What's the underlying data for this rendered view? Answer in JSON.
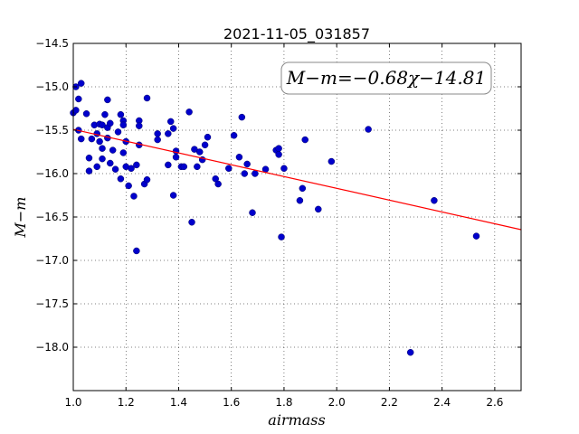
{
  "chart_data": {
    "type": "scatter",
    "title": "2021-11-05_031857",
    "xlabel": "airmass",
    "ylabel": "M−m",
    "xlim": [
      1.0,
      2.7
    ],
    "ylim": [
      -14.5,
      -18.5
    ],
    "y_inverted": true,
    "grid": true,
    "xticks": [
      1.0,
      1.2,
      1.4,
      1.6,
      1.8,
      2.0,
      2.2,
      2.4,
      2.6
    ],
    "xtick_labels": [
      "1.0",
      "1.2",
      "1.4",
      "1.6",
      "1.8",
      "2.0",
      "2.2",
      "2.4",
      "2.6"
    ],
    "yticks": [
      -14.5,
      -15.0,
      -15.5,
      -16.0,
      -16.5,
      -17.0,
      -17.5,
      -18.0
    ],
    "ytick_labels": [
      "−14.5",
      "−15.0",
      "−15.5",
      "−16.0",
      "−16.5",
      "−17.0",
      "−17.5",
      "−18.0"
    ],
    "annotation": "M−m=−0.68χ−14.81",
    "annotation_position": "top-right",
    "fit": {
      "slope": -0.68,
      "intercept": -14.81,
      "color": "#ff0000"
    },
    "point_color": "#0000cc",
    "points": [
      [
        1.0,
        -15.3
      ],
      [
        1.01,
        -15.27
      ],
      [
        1.01,
        -15.0
      ],
      [
        1.02,
        -15.5
      ],
      [
        1.02,
        -15.14
      ],
      [
        1.03,
        -14.96
      ],
      [
        1.03,
        -15.6
      ],
      [
        1.05,
        -15.31
      ],
      [
        1.06,
        -15.82
      ],
      [
        1.06,
        -15.97
      ],
      [
        1.07,
        -15.6
      ],
      [
        1.08,
        -15.44
      ],
      [
        1.09,
        -15.92
      ],
      [
        1.09,
        -15.54
      ],
      [
        1.1,
        -15.43
      ],
      [
        1.1,
        -15.63
      ],
      [
        1.11,
        -15.44
      ],
      [
        1.11,
        -15.71
      ],
      [
        1.11,
        -15.83
      ],
      [
        1.12,
        -15.32
      ],
      [
        1.13,
        -15.15
      ],
      [
        1.13,
        -15.59
      ],
      [
        1.13,
        -15.47
      ],
      [
        1.14,
        -15.42
      ],
      [
        1.14,
        -15.88
      ],
      [
        1.15,
        -15.73
      ],
      [
        1.16,
        -15.95
      ],
      [
        1.17,
        -15.52
      ],
      [
        1.18,
        -16.06
      ],
      [
        1.18,
        -15.32
      ],
      [
        1.19,
        -15.39
      ],
      [
        1.19,
        -15.44
      ],
      [
        1.19,
        -15.76
      ],
      [
        1.2,
        -15.92
      ],
      [
        1.2,
        -15.63
      ],
      [
        1.21,
        -16.14
      ],
      [
        1.22,
        -15.94
      ],
      [
        1.23,
        -16.26
      ],
      [
        1.24,
        -15.9
      ],
      [
        1.24,
        -16.89
      ],
      [
        1.25,
        -15.39
      ],
      [
        1.25,
        -15.45
      ],
      [
        1.25,
        -15.67
      ],
      [
        1.27,
        -16.12
      ],
      [
        1.28,
        -16.07
      ],
      [
        1.28,
        -15.13
      ],
      [
        1.32,
        -15.54
      ],
      [
        1.32,
        -15.61
      ],
      [
        1.36,
        -15.54
      ],
      [
        1.36,
        -15.9
      ],
      [
        1.37,
        -15.4
      ],
      [
        1.38,
        -16.25
      ],
      [
        1.38,
        -15.48
      ],
      [
        1.39,
        -15.74
      ],
      [
        1.39,
        -15.81
      ],
      [
        1.41,
        -15.92
      ],
      [
        1.42,
        -15.92
      ],
      [
        1.44,
        -15.29
      ],
      [
        1.45,
        -16.56
      ],
      [
        1.46,
        -15.72
      ],
      [
        1.47,
        -15.92
      ],
      [
        1.48,
        -15.75
      ],
      [
        1.49,
        -15.84
      ],
      [
        1.5,
        -15.67
      ],
      [
        1.51,
        -15.58
      ],
      [
        1.54,
        -16.06
      ],
      [
        1.55,
        -16.12
      ],
      [
        1.59,
        -15.94
      ],
      [
        1.61,
        -15.56
      ],
      [
        1.63,
        -15.81
      ],
      [
        1.64,
        -15.35
      ],
      [
        1.65,
        -16.0
      ],
      [
        1.66,
        -15.89
      ],
      [
        1.68,
        -16.45
      ],
      [
        1.69,
        -16.0
      ],
      [
        1.73,
        -15.95
      ],
      [
        1.77,
        -15.73
      ],
      [
        1.78,
        -15.71
      ],
      [
        1.78,
        -15.78
      ],
      [
        1.79,
        -16.73
      ],
      [
        1.8,
        -15.94
      ],
      [
        1.86,
        -16.31
      ],
      [
        1.87,
        -16.17
      ],
      [
        1.88,
        -15.61
      ],
      [
        1.93,
        -16.41
      ],
      [
        1.98,
        -15.86
      ],
      [
        2.12,
        -15.49
      ],
      [
        2.28,
        -18.06
      ],
      [
        2.37,
        -16.31
      ],
      [
        2.53,
        -16.72
      ]
    ]
  }
}
